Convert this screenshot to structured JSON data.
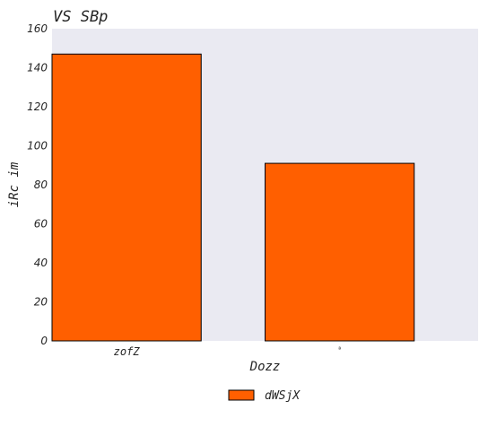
{
  "chart_data": {
    "type": "bar",
    "title": "VS SBp",
    "xlabel": "Dozz",
    "ylabel": "iRc im",
    "categories": [
      "zofZ",
      "ª"
    ],
    "series": [
      {
        "name": "dWSjX",
        "values": [
          147,
          91
        ],
        "color": "#ff5f00"
      }
    ],
    "ylim": [
      0,
      160
    ],
    "yticks": [
      0,
      20,
      40,
      60,
      80,
      100,
      120,
      140,
      160
    ],
    "grid": false,
    "legend": "bottom-center",
    "background": "#eaeaf2",
    "bar_edge_color": "#000000"
  }
}
